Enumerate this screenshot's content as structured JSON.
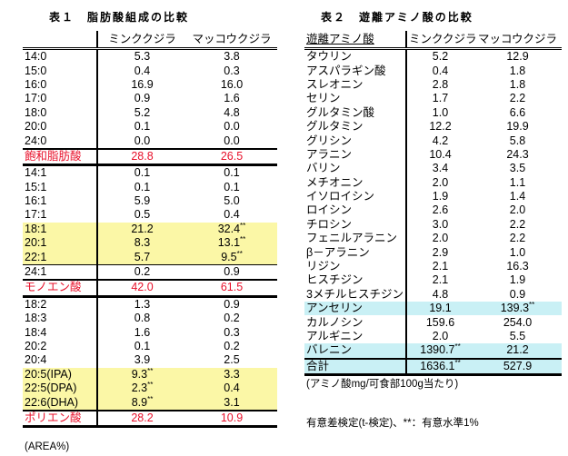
{
  "table1": {
    "title": "表１　脂肪酸組成の比較",
    "headers": [
      "",
      "ミンククジラ",
      "マッコウクジラ"
    ],
    "rows": [
      {
        "label": "14:0",
        "minke": "5.3",
        "sperm": "3.8"
      },
      {
        "label": "15:0",
        "minke": "0.4",
        "sperm": "0.3"
      },
      {
        "label": "16:0",
        "minke": "16.9",
        "sperm": "16.0"
      },
      {
        "label": "17:0",
        "minke": "0.9",
        "sperm": "1.6"
      },
      {
        "label": "18:0",
        "minke": "5.2",
        "sperm": "4.8"
      },
      {
        "label": "20:0",
        "minke": "0.1",
        "sperm": "0.0"
      },
      {
        "label": "24:0",
        "minke": "0.0",
        "sperm": "0.0"
      },
      {
        "label": "飽和脂肪酸",
        "minke": "28.8",
        "sperm": "26.5",
        "type": "subtotal"
      },
      {
        "label": "14:1",
        "minke": "0.1",
        "sperm": "0.1"
      },
      {
        "label": "15:1",
        "minke": "0.1",
        "sperm": "0.1"
      },
      {
        "label": "16:1",
        "minke": "5.9",
        "sperm": "5.0"
      },
      {
        "label": "17:1",
        "minke": "0.5",
        "sperm": "0.4"
      },
      {
        "label": "18:1",
        "minke": "21.2",
        "sperm": "32.4",
        "sperm_sig": "**",
        "highlight": "yellow"
      },
      {
        "label": "20:1",
        "minke": "8.3",
        "sperm": "13.1",
        "sperm_sig": "**",
        "highlight": "yellow"
      },
      {
        "label": "22:1",
        "minke": "5.7",
        "sperm": "9.5",
        "sperm_sig": "**",
        "highlight": "yellow"
      },
      {
        "label": "24:1",
        "minke": "0.2",
        "sperm": "0.9"
      },
      {
        "label": "モノエン酸",
        "minke": "42.0",
        "sperm": "61.5",
        "type": "subtotal"
      },
      {
        "label": "18:2",
        "minke": "1.3",
        "sperm": "0.9"
      },
      {
        "label": "18:3",
        "minke": "0.8",
        "sperm": "0.2"
      },
      {
        "label": "18:4",
        "minke": "1.6",
        "sperm": "0.3"
      },
      {
        "label": "20:2",
        "minke": "0.1",
        "sperm": "0.2"
      },
      {
        "label": "20:4",
        "minke": "3.9",
        "sperm": "2.5"
      },
      {
        "label": "20:5(IPA)",
        "minke": "9.3",
        "minke_sig": "**",
        "sperm": "3.3",
        "highlight": "yellow"
      },
      {
        "label": "22:5(DPA)",
        "minke": "2.3",
        "minke_sig": "**",
        "sperm": "0.4",
        "highlight": "yellow"
      },
      {
        "label": "22:6(DHA)",
        "minke": "8.9",
        "minke_sig": "**",
        "sperm": "3.1",
        "highlight": "yellow"
      },
      {
        "label": "ポリエン酸",
        "minke": "28.2",
        "sperm": "10.9",
        "type": "subtotal"
      }
    ],
    "unit_note": "(AREA%)"
  },
  "table2": {
    "title": "表２　遊離アミノ酸の比較",
    "headers": [
      "遊離アミノ酸",
      "ミンククジラ",
      "マッコウクジラ"
    ],
    "rows": [
      {
        "label": "タウリン",
        "minke": "5.2",
        "sperm": "12.9"
      },
      {
        "label": "アスパラギン酸",
        "minke": "0.4",
        "sperm": "1.8"
      },
      {
        "label": "スレオニン",
        "minke": "2.8",
        "sperm": "1.8"
      },
      {
        "label": "セリン",
        "minke": "1.7",
        "sperm": "2.2"
      },
      {
        "label": "グルタミン酸",
        "minke": "1.0",
        "sperm": "6.6"
      },
      {
        "label": "グルタミン",
        "minke": "12.2",
        "sperm": "19.9"
      },
      {
        "label": "グリシン",
        "minke": "4.2",
        "sperm": "5.8"
      },
      {
        "label": "アラニン",
        "minke": "10.4",
        "sperm": "24.3"
      },
      {
        "label": "バリン",
        "minke": "3.4",
        "sperm": "3.5"
      },
      {
        "label": "メチオニン",
        "minke": "2.0",
        "sperm": "1.1"
      },
      {
        "label": "イソロイシン",
        "minke": "1.9",
        "sperm": "1.4"
      },
      {
        "label": "ロイシン",
        "minke": "2.6",
        "sperm": "2.0"
      },
      {
        "label": "チロシン",
        "minke": "3.0",
        "sperm": "2.2"
      },
      {
        "label": "フェニルアラニン",
        "minke": "2.0",
        "sperm": "2.2"
      },
      {
        "label": "β－アラニン",
        "minke": "2.9",
        "sperm": "1.0"
      },
      {
        "label": "リジン",
        "minke": "2.1",
        "sperm": "16.3"
      },
      {
        "label": "ヒスチジン",
        "minke": "2.1",
        "sperm": "1.9"
      },
      {
        "label": "3メチルヒスチジン",
        "minke": "4.8",
        "sperm": "0.9"
      },
      {
        "label": "アンセリン",
        "minke": "19.1",
        "sperm": "139.3",
        "sperm_sig": "**",
        "highlight": "cyan"
      },
      {
        "label": "カルノシン",
        "minke": "159.6",
        "sperm": "254.0"
      },
      {
        "label": "アルギニン",
        "minke": "2.0",
        "sperm": "5.5"
      },
      {
        "label": "バレニン",
        "minke": "1390.7",
        "minke_sig": "**",
        "sperm": "21.2",
        "highlight": "cyan"
      },
      {
        "label": "合計",
        "minke": "1636.1",
        "minke_sig": "**",
        "sperm": "527.9",
        "type": "total",
        "highlight": "cyan"
      }
    ],
    "unit_note": "(アミノ酸mg/可食部100g当たり)"
  },
  "significance_note": "有意差検定(t-検定)、**：有意水準1%",
  "colors": {
    "subtotal_text": "#e8102a",
    "highlight_yellow": "#fbf7a6",
    "highlight_cyan": "#c9f0f5"
  }
}
